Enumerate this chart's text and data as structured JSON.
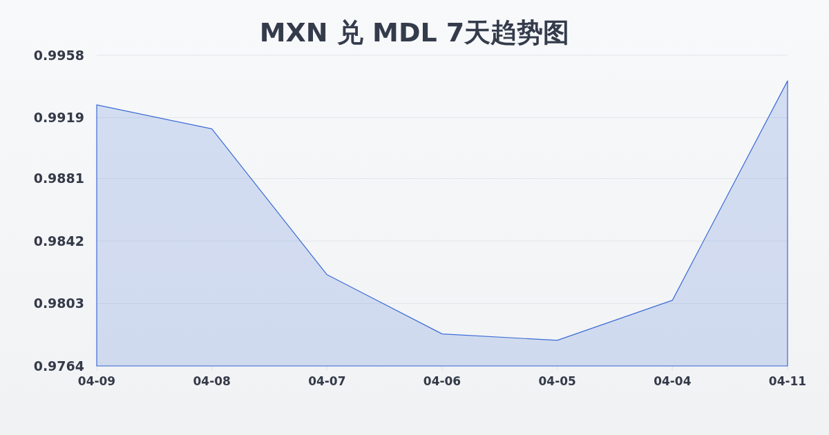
{
  "chart_data": {
    "type": "area",
    "title": "MXN 兑 MDL 7天趋势图",
    "categories": [
      "04-09",
      "04-08",
      "04-07",
      "04-06",
      "04-05",
      "04-04",
      "04-11"
    ],
    "series": [
      {
        "color": "#3a6bd4",
        "values": [
          0.9927,
          0.9912,
          0.9821,
          0.9784,
          0.978,
          0.9805,
          0.9942
        ]
      }
    ],
    "ylim": [
      0.9764,
      0.9958
    ],
    "yticks": [
      0.9764,
      0.9803,
      0.9842,
      0.9881,
      0.9919,
      0.9958
    ],
    "grid": "y"
  }
}
